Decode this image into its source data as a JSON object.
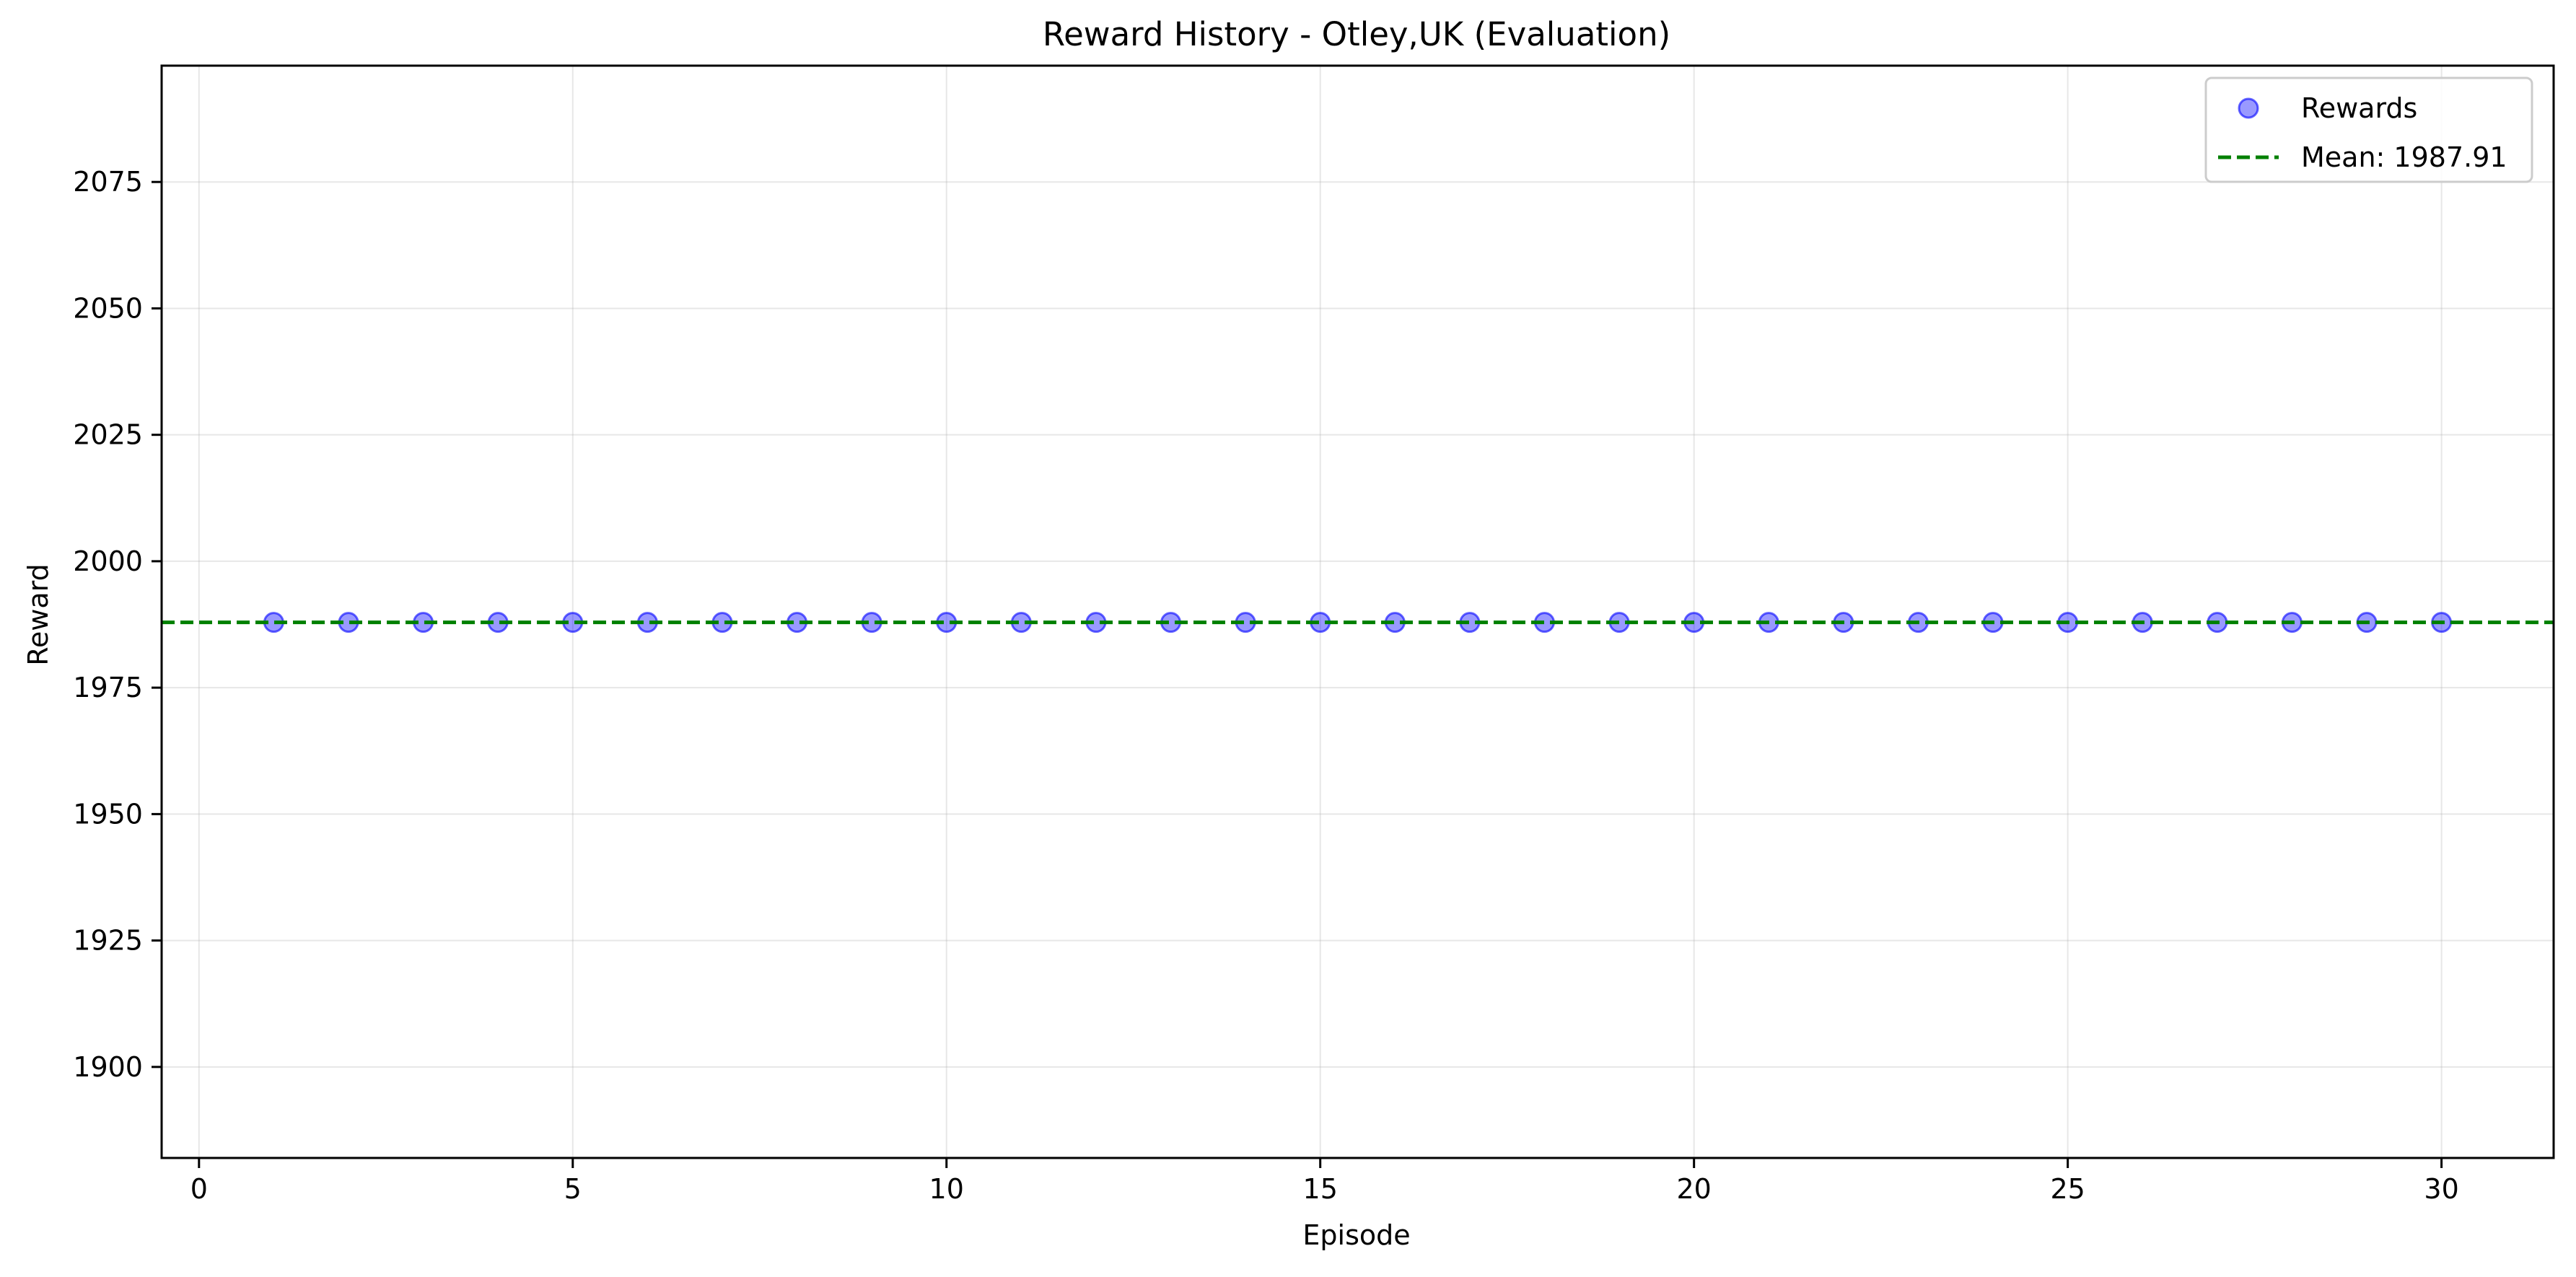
{
  "chart_data": {
    "type": "scatter",
    "title": "Reward History - Otley,UK (Evaluation)",
    "xlabel": "Episode",
    "ylabel": "Reward",
    "xlim": [
      -0.5,
      31.5
    ],
    "ylim": [
      1882,
      2098
    ],
    "x_ticks": [
      0,
      5,
      10,
      15,
      20,
      25,
      30
    ],
    "y_ticks": [
      1900,
      1925,
      1950,
      1975,
      2000,
      2025,
      2050,
      2075
    ],
    "grid": true,
    "legend_position": "top-right",
    "series": [
      {
        "name": "Rewards",
        "kind": "scatter",
        "color": "#0000ff",
        "x": [
          1,
          2,
          3,
          4,
          5,
          6,
          7,
          8,
          9,
          10,
          11,
          12,
          13,
          14,
          15,
          16,
          17,
          18,
          19,
          20,
          21,
          22,
          23,
          24,
          25,
          26,
          27,
          28,
          29,
          30
        ],
        "y": [
          1987.91,
          1987.91,
          1987.91,
          1987.91,
          1987.91,
          1987.91,
          1987.91,
          1987.91,
          1987.91,
          1987.91,
          1987.91,
          1987.91,
          1987.91,
          1987.91,
          1987.91,
          1987.91,
          1987.91,
          1987.91,
          1987.91,
          1987.91,
          1987.91,
          1987.91,
          1987.91,
          1987.91,
          1987.91,
          1987.91,
          1987.91,
          1987.91,
          1987.91,
          1987.91
        ]
      },
      {
        "name": "Mean: 1987.91",
        "kind": "hline",
        "color": "#008000",
        "y": 1987.91
      }
    ]
  }
}
